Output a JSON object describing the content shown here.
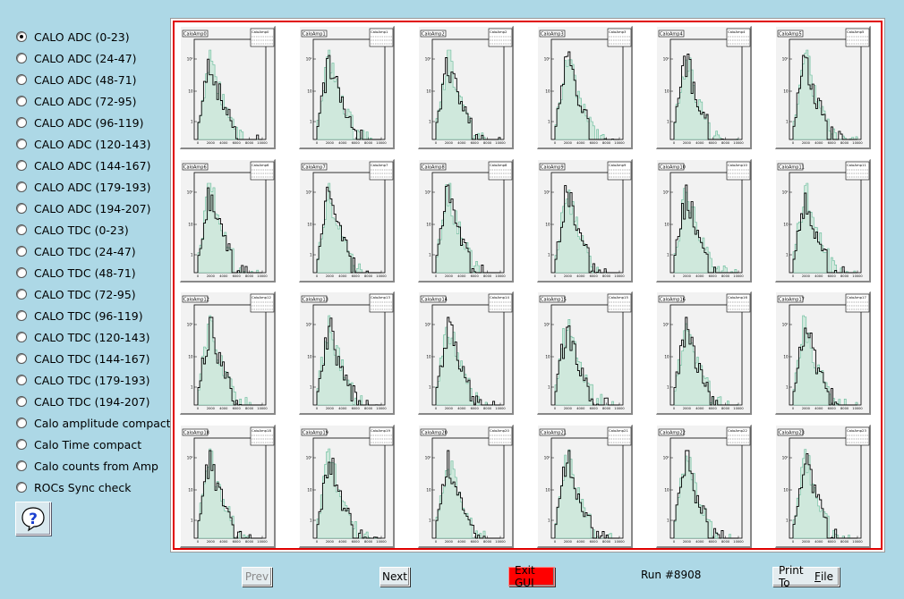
{
  "sidebar": {
    "selected_index": 0,
    "options": [
      "CALO ADC (0-23)",
      "CALO ADC (24-47)",
      "CALO ADC (48-71)",
      "CALO ADC (72-95)",
      "CALO ADC (96-119)",
      "CALO ADC (120-143)",
      "CALO ADC (144-167)",
      "CALO ADC (179-193)",
      "CALO ADC (194-207)",
      "CALO TDC (0-23)",
      "CALO TDC (24-47)",
      "CALO TDC (48-71)",
      "CALO TDC (72-95)",
      "CALO TDC (96-119)",
      "CALO TDC (120-143)",
      "CALO TDC (144-167)",
      "CALO TDC (179-193)",
      "CALO TDC (194-207)",
      "Calo amplitude compact",
      "Calo Time compact",
      "Calo counts from Amp",
      "ROCs Sync check"
    ],
    "help_icon": "question-mark-icon"
  },
  "histograms": [
    "CaloAmp0",
    "CaloAmp1",
    "CaloAmp2",
    "CaloAmp3",
    "CaloAmp4",
    "CaloAmp5",
    "CaloAmp6",
    "CaloAmp7",
    "CaloAmp8",
    "CaloAmp9",
    "CaloAmp10",
    "CaloAmp11",
    "CaloAmp12",
    "CaloAmp13",
    "CaloAmp14",
    "CaloAmp15",
    "CaloAmp16",
    "CaloAmp17",
    "CaloAmp18",
    "CaloAmp19",
    "CaloAmp20",
    "CaloAmp21",
    "CaloAmp22",
    "CaloAmp23"
  ],
  "axis": {
    "x_ticks": [
      "0",
      "2000",
      "4000",
      "6000",
      "8000",
      "10000"
    ],
    "y_ticks": [
      "10²",
      "10",
      "1"
    ]
  },
  "colors": {
    "canvas_border": "#e00000",
    "reference_fill": "#66bb99",
    "data_line": "#000000",
    "background": "#add8e6"
  },
  "footer": {
    "prev_label": "Prev",
    "next_label": "Next",
    "exit_label": "Exit GUI",
    "run_label": "Run #8908",
    "print_label_pre": "Print To ",
    "print_label_underline": "F",
    "print_label_post": "ile"
  }
}
